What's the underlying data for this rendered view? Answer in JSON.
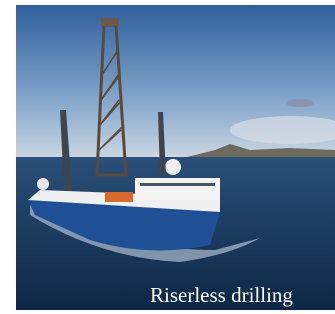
{
  "image": {
    "caption": "Riserless drilling"
  }
}
